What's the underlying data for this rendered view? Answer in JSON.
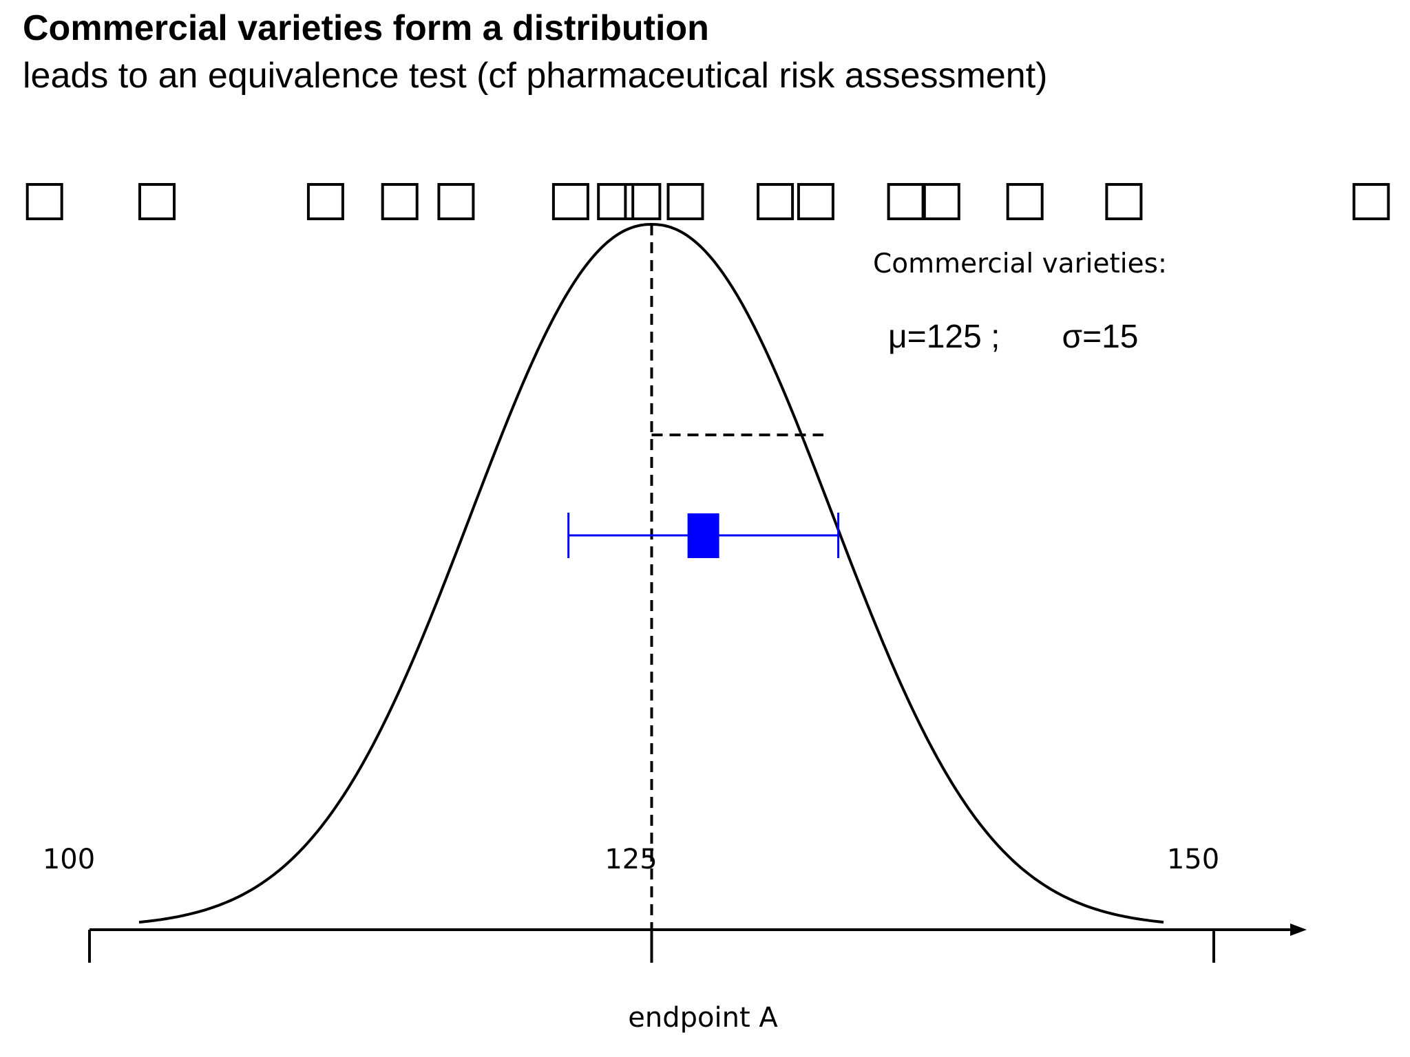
{
  "title": "Commercial varieties form a distribution",
  "subtitle": "leads to an equivalence test (cf pharmaceutical risk assessment)",
  "legend": {
    "heading": "Commercial varieties:",
    "mu": "μ=125 ;",
    "sigma": "σ=15"
  },
  "axis": {
    "label": "endpoint A",
    "ticks": [
      "100",
      "125",
      "150"
    ]
  },
  "chart_data": {
    "type": "scatter",
    "distribution": {
      "mean": 125,
      "sd": 15
    },
    "xlim": [
      100,
      150
    ],
    "commercial_varieties_x": [
      98,
      103,
      110.5,
      113.8,
      116.3,
      121.4,
      123.4,
      124.6,
      126.5,
      130.5,
      132.3,
      136.3,
      137.9,
      141.6,
      146,
      157
    ],
    "test_variety": {
      "estimate": 127.3,
      "ci_lower": 121.3,
      "ci_upper": 133.3
    },
    "colors": {
      "test_variety": "#0000ff",
      "curve": "#000000"
    }
  }
}
